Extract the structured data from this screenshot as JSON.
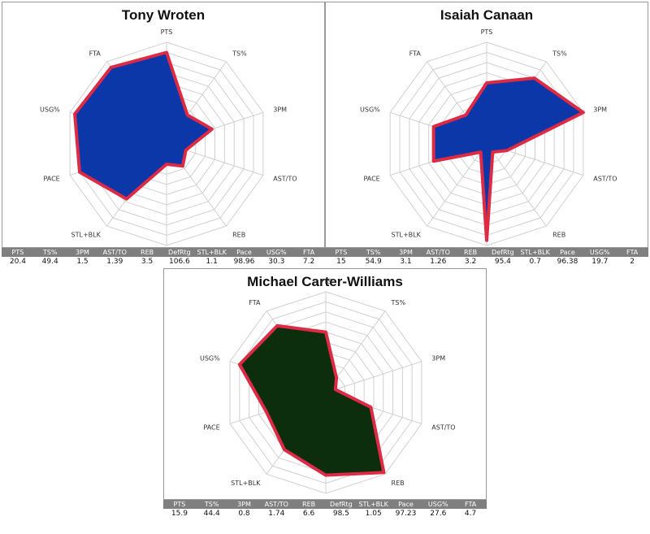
{
  "chart_data": [
    {
      "type": "radar",
      "title": "Tony Wroten",
      "axes": [
        "PTS",
        "TS%",
        "3PM",
        "AST/TO",
        "REB",
        "DefRtg",
        "STL+BLK",
        "Pace",
        "USG%",
        "FTA"
      ],
      "axis_labels": [
        "PTS",
        "TS%",
        "3PM",
        "AST/TO",
        "REB",
        "DefRtg",
        "STL+BLK",
        "PACE",
        "USG%",
        "FTA"
      ],
      "radar_values": [
        0.9,
        0.35,
        0.47,
        0.2,
        0.27,
        0.2,
        0.67,
        0.9,
        0.95,
        0.93
      ],
      "rings": 10,
      "fill_color": "#0b37a8",
      "stroke_color": "#dd2a45",
      "stats": [
        "20.4",
        "49.4",
        "1.5",
        "1.39",
        "3.5",
        "106.6",
        "1.1",
        "98.96",
        "30.3",
        "7.2"
      ]
    },
    {
      "type": "radar",
      "title": "Isaiah Canaan",
      "axes": [
        "PTS",
        "TS%",
        "3PM",
        "AST/TO",
        "REB",
        "DefRtg",
        "STL+BLK",
        "Pace",
        "USG%",
        "FTA"
      ],
      "axis_labels": [
        "PTS",
        "TS%",
        "3PM",
        "AST/TO",
        "REB",
        "DefRtg",
        "STL+BLK",
        "PACE",
        "USG%",
        "FTA"
      ],
      "radar_values": [
        0.6,
        0.8,
        1.0,
        0.21,
        0.1,
        0.95,
        0.1,
        0.55,
        0.55,
        0.35
      ],
      "rings": 10,
      "fill_color": "#0b37a8",
      "stroke_color": "#dd2a45",
      "stats": [
        "15",
        "54.9",
        "3.1",
        "1.26",
        "3.2",
        "95.4",
        "0.7",
        "96.38",
        "19.7",
        "2"
      ]
    },
    {
      "type": "radar",
      "title": "Michael Carter-Williams",
      "axes": [
        "PTS",
        "TS%",
        "3PM",
        "AST/TO",
        "REB",
        "DefRtg",
        "STL+BLK",
        "Pace",
        "USG%",
        "FTA"
      ],
      "axis_labels": [
        "PTS",
        "TS%",
        "3PM",
        "AST/TO",
        "REB",
        "DefRtg",
        "STL+BLK",
        "PACE",
        "USG%",
        "FTA"
      ],
      "radar_values": [
        0.6,
        0.18,
        0.1,
        0.47,
        0.98,
        0.82,
        0.7,
        0.62,
        0.9,
        0.82
      ],
      "rings": 10,
      "fill_color": "#0d2e0d",
      "stroke_color": "#dd2a45",
      "stats": [
        "15.9",
        "44.4",
        "0.8",
        "1.74",
        "6.6",
        "98.5",
        "1.05",
        "97.23",
        "27.6",
        "4.7"
      ]
    }
  ],
  "table_headers": [
    "PTS",
    "TS%",
    "3PM",
    "AST/TO",
    "REB",
    "DefRtg",
    "STL+BLK",
    "Pace",
    "USG%",
    "FTA"
  ]
}
